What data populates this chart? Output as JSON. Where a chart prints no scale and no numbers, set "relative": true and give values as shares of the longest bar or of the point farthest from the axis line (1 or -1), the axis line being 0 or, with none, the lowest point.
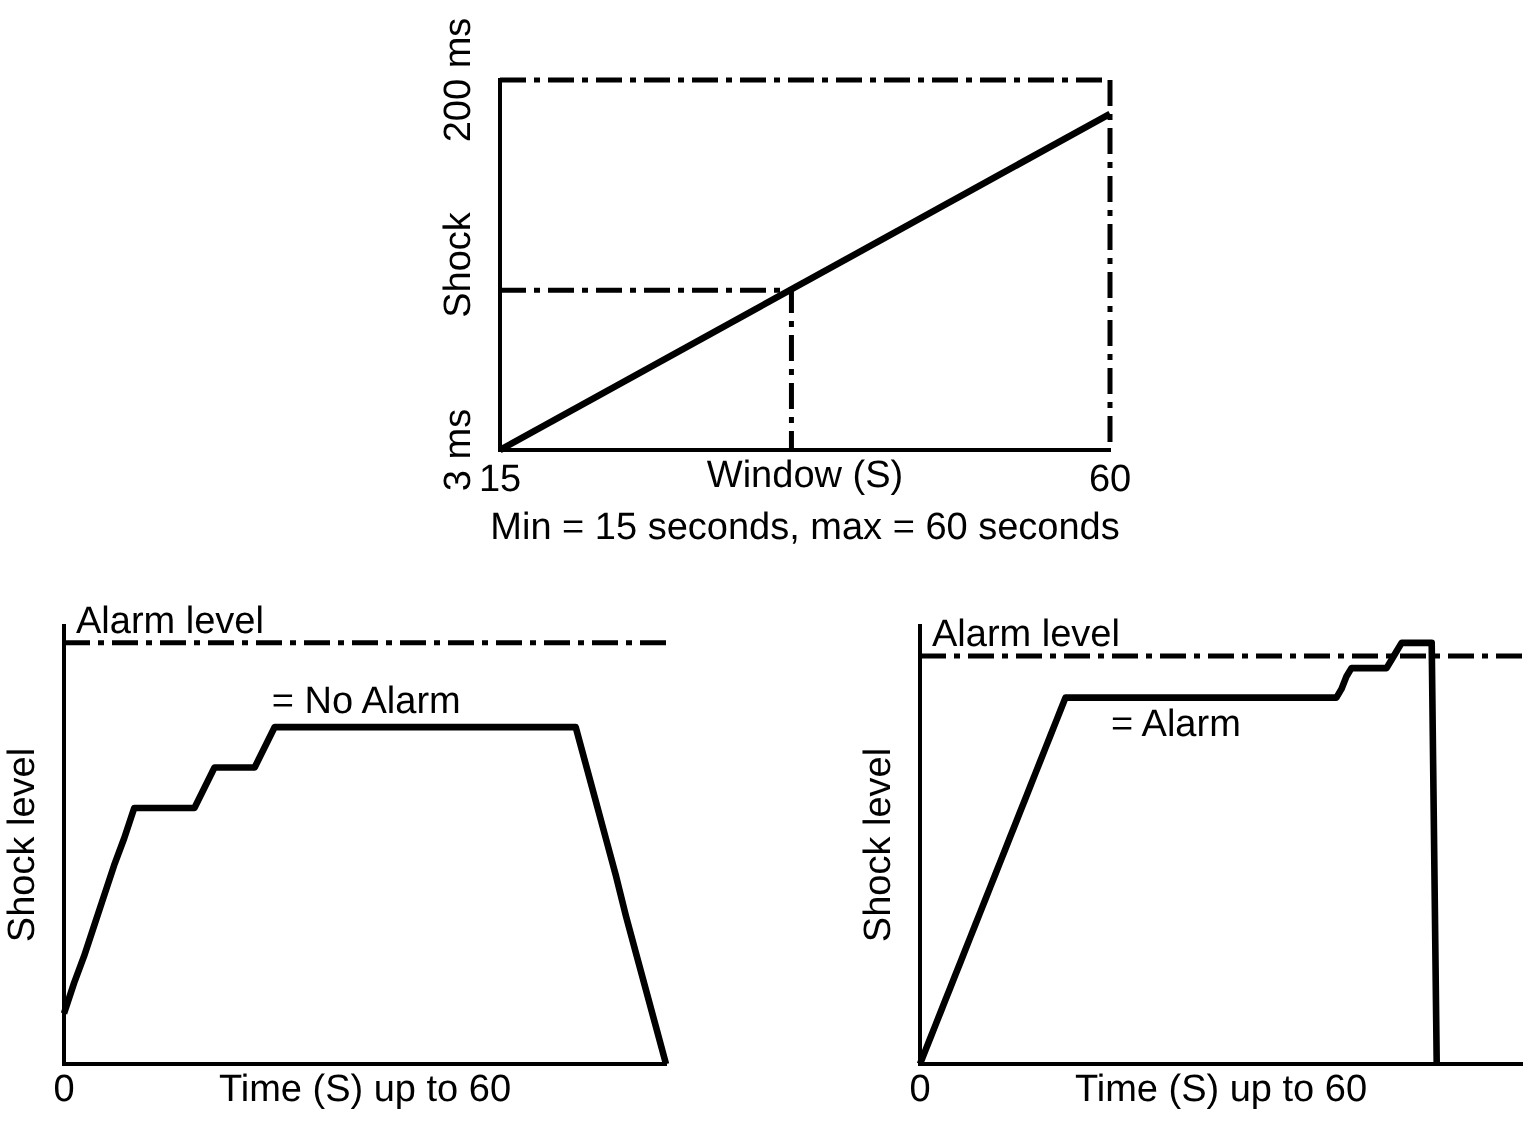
{
  "chart_data": [
    {
      "type": "line",
      "xlabel": "Window (S)",
      "ylabel": "Shock",
      "xlim": [
        15,
        60
      ],
      "xticks": [
        15,
        60
      ],
      "ylim": [
        3,
        200
      ],
      "yticks": [
        {
          "value": 3,
          "label": "3 ms"
        },
        {
          "value": 200,
          "label": "200 ms"
        }
      ],
      "series": [
        {
          "color": "#000000",
          "x": [
            15,
            60
          ],
          "values": [
            3,
            182
          ]
        },
        {
          "color": "#000000",
          "line_style": "dashed",
          "x": [
            15,
            36.5,
            36.5
          ],
          "values": [
            88,
            88,
            3
          ]
        }
      ],
      "ref_lines": [
        {
          "axis": "y",
          "value": 200,
          "line_style": "dashed",
          "color": "#000000"
        },
        {
          "axis": "x",
          "value": 60,
          "line_style": "dashed",
          "color": "#000000"
        }
      ],
      "annotations": [
        "Min = 15 seconds, max = 60 seconds"
      ]
    },
    {
      "type": "line",
      "xlabel": "Time (S) up to 60",
      "ylabel": "Shock level",
      "relative": true,
      "categories": [
        null,
        null,
        null,
        null,
        null,
        null,
        null,
        null,
        null,
        null,
        null,
        null,
        null,
        null,
        null,
        null,
        null,
        null,
        null,
        null,
        null,
        null,
        null,
        null,
        null,
        null,
        null,
        null,
        null,
        null,
        null,
        null,
        null,
        null,
        null,
        null,
        null,
        null,
        null,
        null,
        null,
        null,
        null,
        null,
        null,
        null,
        null,
        null,
        null,
        null,
        null,
        null,
        null,
        null,
        null,
        null,
        null,
        null,
        null,
        null,
        null
      ],
      "series": [
        {
          "color": "#000000",
          "values": [
            0.15,
            0.24,
            0.32,
            0.41,
            0.5,
            0.59,
            0.67,
            0.76,
            0.76,
            0.76,
            0.76,
            0.76,
            0.76,
            0.76,
            0.82,
            0.88,
            0.88,
            0.88,
            0.88,
            0.88,
            0.94,
            1,
            1,
            1,
            1,
            1,
            1,
            1,
            1,
            1,
            1,
            1,
            1,
            1,
            1,
            1,
            1,
            1,
            1,
            1,
            1,
            1,
            1,
            1,
            1,
            1,
            1,
            1,
            1,
            1,
            1,
            1,
            0.89,
            0.78,
            0.67,
            0.56,
            0.44,
            0.33,
            0.22,
            0.11,
            0
          ]
        }
      ],
      "ref_lines": [
        {
          "axis": "y",
          "value": 1.25,
          "label": "Alarm level",
          "line_style": "dashed",
          "color": "#000000"
        }
      ],
      "annotations": [
        "= No Alarm",
        "0"
      ]
    },
    {
      "type": "line",
      "xlabel": "Time (S) up to 60",
      "ylabel": "Shock level",
      "relative": true,
      "categories": [
        null,
        null,
        null,
        null,
        null,
        null,
        null,
        null,
        null,
        null,
        null,
        null,
        null,
        null,
        null,
        null,
        null,
        null,
        null,
        null,
        null,
        null,
        null,
        null,
        null,
        null,
        null,
        null,
        null,
        null,
        null,
        null,
        null,
        null,
        null,
        null,
        null,
        null,
        null,
        null,
        null,
        null,
        null,
        null,
        null,
        null,
        null,
        null,
        null,
        null,
        null,
        null,
        null,
        null,
        null,
        null,
        null,
        null,
        null,
        null,
        null,
        null,
        null,
        null,
        null,
        null,
        null,
        null,
        null,
        null,
        null,
        null,
        null,
        null,
        null,
        null,
        null,
        null,
        null,
        null,
        null,
        null,
        null,
        null,
        null,
        null,
        null,
        null,
        null,
        null,
        null,
        null,
        null,
        null,
        null,
        null,
        null,
        null,
        null,
        null,
        null,
        null,
        null,
        null,
        null,
        null,
        null,
        null,
        null,
        null,
        null,
        null,
        null,
        null,
        null,
        null,
        null,
        null,
        null,
        null,
        null
      ],
      "series": [
        {
          "color": "#000000",
          "values": [
            0,
            0.03,
            0.06,
            0.09,
            0.12,
            0.15,
            0.18,
            0.21,
            0.24,
            0.27,
            0.3,
            0.33,
            0.36,
            0.39,
            0.42,
            0.45,
            0.48,
            0.51,
            0.54,
            0.57,
            0.6,
            0.63,
            0.66,
            0.69,
            0.72,
            0.75,
            0.78,
            0.81,
            0.84,
            0.87,
            0.87,
            0.87,
            0.87,
            0.87,
            0.87,
            0.87,
            0.87,
            0.87,
            0.87,
            0.87,
            0.87,
            0.87,
            0.87,
            0.87,
            0.87,
            0.87,
            0.87,
            0.87,
            0.87,
            0.87,
            0.87,
            0.87,
            0.87,
            0.87,
            0.87,
            0.87,
            0.87,
            0.87,
            0.87,
            0.87,
            0.87,
            0.87,
            0.87,
            0.87,
            0.87,
            0.87,
            0.87,
            0.87,
            0.87,
            0.87,
            0.87,
            0.87,
            0.87,
            0.87,
            0.87,
            0.87,
            0.87,
            0.87,
            0.87,
            0.87,
            0.87,
            0.87,
            0.87,
            0.87,
            0.89,
            0.92,
            0.94,
            0.94,
            0.94,
            0.94,
            0.94,
            0.94,
            0.94,
            0.94,
            0.96,
            0.98,
            1,
            1,
            1,
            1,
            1,
            1,
            1,
            0,
            null,
            null,
            null,
            null,
            null,
            null,
            null,
            null,
            null,
            null,
            null,
            null,
            null,
            null,
            null,
            null,
            null
          ]
        }
      ],
      "ref_lines": [
        {
          "axis": "y",
          "value": 0.969,
          "label": "Alarm level",
          "line_style": "dashed",
          "color": "#000000"
        }
      ],
      "annotations": [
        "= Alarm",
        "0"
      ]
    }
  ]
}
